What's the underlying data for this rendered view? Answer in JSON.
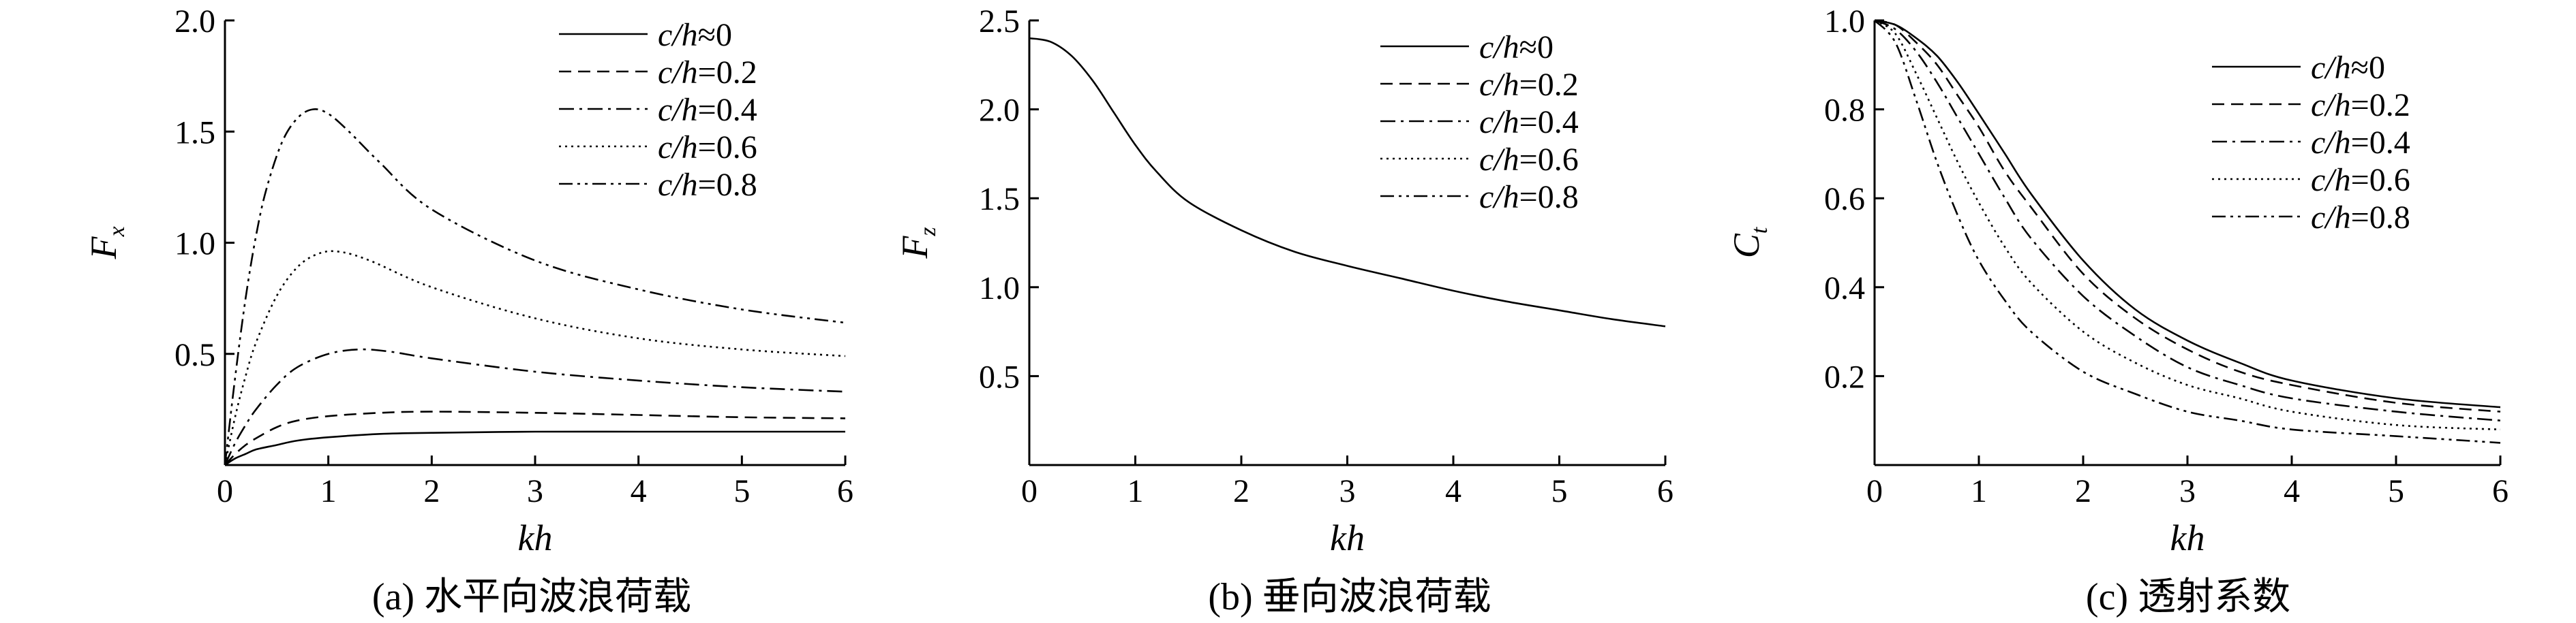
{
  "chart_data": [
    {
      "type": "line",
      "caption": "(a) 水平向波浪荷载",
      "xlabel": "kh",
      "ylabel_main": "F",
      "ylabel_sub": "x",
      "xlim": [
        0,
        6
      ],
      "ylim": [
        0,
        2.0
      ],
      "xticks": [
        "0",
        "1",
        "2",
        "3",
        "4",
        "5",
        "6"
      ],
      "yticks": [
        "0.5",
        "1.0",
        "1.5",
        "2.0"
      ],
      "series": [
        {
          "name": "c/h≈0",
          "style": "solid",
          "x": [
            0,
            0.1,
            0.2,
            0.3,
            0.5,
            0.7,
            1.0,
            1.5,
            2.0,
            3.0,
            4.0,
            5.0,
            6.0
          ],
          "y": [
            0,
            0.03,
            0.05,
            0.07,
            0.09,
            0.11,
            0.125,
            0.14,
            0.145,
            0.15,
            0.15,
            0.15,
            0.15
          ]
        },
        {
          "name": "c/h=0.2",
          "style": "dashed",
          "x": [
            0,
            0.1,
            0.2,
            0.3,
            0.5,
            0.7,
            1.0,
            1.5,
            2.0,
            3.0,
            4.0,
            5.0,
            6.0
          ],
          "y": [
            0,
            0.05,
            0.09,
            0.12,
            0.17,
            0.2,
            0.22,
            0.235,
            0.24,
            0.235,
            0.225,
            0.215,
            0.21
          ]
        },
        {
          "name": "c/h=0.4",
          "style": "dashdot",
          "x": [
            0,
            0.1,
            0.2,
            0.3,
            0.5,
            0.7,
            1.0,
            1.3,
            1.6,
            2.0,
            3.0,
            4.0,
            5.0,
            6.0
          ],
          "y": [
            0,
            0.1,
            0.18,
            0.25,
            0.36,
            0.44,
            0.5,
            0.52,
            0.51,
            0.48,
            0.42,
            0.38,
            0.35,
            0.33
          ]
        },
        {
          "name": "c/h=0.6",
          "style": "dotted",
          "x": [
            0,
            0.1,
            0.2,
            0.3,
            0.5,
            0.7,
            0.9,
            1.1,
            1.4,
            2.0,
            3.0,
            4.0,
            5.0,
            6.0
          ],
          "y": [
            0,
            0.22,
            0.4,
            0.55,
            0.76,
            0.89,
            0.95,
            0.96,
            0.92,
            0.8,
            0.66,
            0.57,
            0.52,
            0.49
          ]
        },
        {
          "name": "c/h=0.8",
          "style": "dashdotdot",
          "x": [
            0,
            0.1,
            0.2,
            0.3,
            0.4,
            0.55,
            0.7,
            0.85,
            1.0,
            1.2,
            1.5,
            2.0,
            3.0,
            4.0,
            5.0,
            6.0
          ],
          "y": [
            0,
            0.4,
            0.75,
            1.03,
            1.24,
            1.45,
            1.56,
            1.6,
            1.58,
            1.5,
            1.36,
            1.15,
            0.92,
            0.79,
            0.7,
            0.64
          ]
        }
      ],
      "legend_position": "top-right"
    },
    {
      "type": "line",
      "caption": "(b) 垂向波浪荷载",
      "xlabel": "kh",
      "ylabel_main": "F",
      "ylabel_sub": "z",
      "xlim": [
        0,
        6
      ],
      "ylim": [
        0,
        2.5
      ],
      "xticks": [
        "0",
        "1",
        "2",
        "3",
        "4",
        "5",
        "6"
      ],
      "yticks": [
        "0.5",
        "1.0",
        "1.5",
        "2.0",
        "2.5"
      ],
      "series": [
        {
          "name": "c/h≈0",
          "style": "solid",
          "x": [
            0,
            0.2,
            0.4,
            0.6,
            0.8,
            1.0,
            1.2,
            1.5,
            2.0,
            2.5,
            3.0,
            3.5,
            4.0,
            4.5,
            5.0,
            5.5,
            6.0
          ],
          "y": [
            2.4,
            2.38,
            2.3,
            2.16,
            1.98,
            1.8,
            1.65,
            1.48,
            1.32,
            1.2,
            1.12,
            1.05,
            0.98,
            0.92,
            0.87,
            0.82,
            0.78
          ]
        }
      ],
      "legend_entries": [
        "c/h≈0",
        "c/h=0.2",
        "c/h=0.4",
        "c/h=0.6",
        "c/h=0.8"
      ],
      "legend_position": "top-right"
    },
    {
      "type": "line",
      "caption": "(c) 透射系数",
      "xlabel": "kh",
      "ylabel_main": "C",
      "ylabel_sub": "t",
      "xlim": [
        0,
        6
      ],
      "ylim": [
        0,
        1.0
      ],
      "xticks": [
        "0",
        "1",
        "2",
        "3",
        "4",
        "5",
        "6"
      ],
      "yticks": [
        "0.2",
        "0.4",
        "0.6",
        "0.8",
        "1.0"
      ],
      "series": [
        {
          "name": "c/h≈0",
          "style": "solid",
          "x": [
            0,
            0.2,
            0.4,
            0.6,
            0.8,
            1.0,
            1.25,
            1.5,
            2.0,
            2.5,
            3.0,
            3.5,
            4.0,
            5.0,
            6.0
          ],
          "y": [
            1.0,
            0.99,
            0.96,
            0.92,
            0.86,
            0.79,
            0.7,
            0.61,
            0.46,
            0.35,
            0.28,
            0.23,
            0.19,
            0.15,
            0.13
          ]
        },
        {
          "name": "c/h=0.2",
          "style": "dashed",
          "x": [
            0,
            0.2,
            0.4,
            0.6,
            0.8,
            1.0,
            1.25,
            1.5,
            2.0,
            2.5,
            3.0,
            3.5,
            4.0,
            5.0,
            6.0
          ],
          "y": [
            1.0,
            0.99,
            0.95,
            0.9,
            0.83,
            0.76,
            0.66,
            0.58,
            0.43,
            0.33,
            0.26,
            0.21,
            0.18,
            0.14,
            0.12
          ]
        },
        {
          "name": "c/h=0.4",
          "style": "dashdot",
          "x": [
            0,
            0.2,
            0.4,
            0.6,
            0.8,
            1.0,
            1.25,
            1.5,
            2.0,
            2.5,
            3.0,
            3.5,
            4.0,
            5.0,
            6.0
          ],
          "y": [
            1.0,
            0.98,
            0.93,
            0.86,
            0.78,
            0.7,
            0.6,
            0.51,
            0.38,
            0.29,
            0.22,
            0.18,
            0.15,
            0.12,
            0.1
          ]
        },
        {
          "name": "c/h=0.6",
          "style": "dotted",
          "x": [
            0,
            0.2,
            0.4,
            0.6,
            0.8,
            1.0,
            1.25,
            1.5,
            2.0,
            2.5,
            3.0,
            3.5,
            4.0,
            5.0,
            6.0
          ],
          "y": [
            1.0,
            0.97,
            0.88,
            0.78,
            0.68,
            0.59,
            0.49,
            0.41,
            0.3,
            0.23,
            0.18,
            0.15,
            0.12,
            0.09,
            0.08
          ]
        },
        {
          "name": "c/h=0.8",
          "style": "dashdotdot",
          "x": [
            0,
            0.2,
            0.4,
            0.6,
            0.8,
            1.0,
            1.25,
            1.5,
            2.0,
            2.5,
            3.0,
            3.5,
            4.0,
            5.0,
            6.0
          ],
          "y": [
            1.0,
            0.95,
            0.82,
            0.68,
            0.56,
            0.46,
            0.37,
            0.3,
            0.21,
            0.16,
            0.12,
            0.1,
            0.08,
            0.065,
            0.05
          ]
        }
      ],
      "legend_position": "top-right"
    }
  ]
}
